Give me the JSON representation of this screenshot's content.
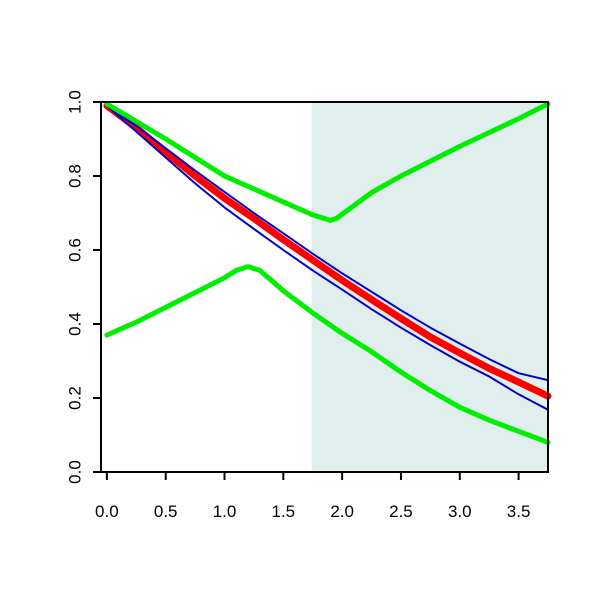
{
  "chart_data": {
    "type": "line",
    "title": "",
    "xlabel": "",
    "ylabel": "",
    "xlim": [
      -0.05,
      3.75
    ],
    "ylim": [
      0.0,
      1.0
    ],
    "x_ticks": [
      0.0,
      0.5,
      1.0,
      1.5,
      2.0,
      2.5,
      3.0,
      3.5
    ],
    "x_tick_labels": [
      "0.0",
      "0.5",
      "1.0",
      "1.5",
      "2.0",
      "2.5",
      "3.0",
      "3.5"
    ],
    "y_ticks": [
      0.0,
      0.2,
      0.4,
      0.6,
      0.8,
      1.0
    ],
    "y_tick_labels": [
      "0.0",
      "0.2",
      "0.4",
      "0.6",
      "0.8",
      "1.0"
    ],
    "grid": false,
    "legend": "none",
    "shaded_region": {
      "x_from": 1.74,
      "x_to": 3.75,
      "color": "#e0eeee"
    },
    "series": [
      {
        "color": "#ff0000",
        "width": 7,
        "x": [
          0.0,
          0.25,
          0.5,
          0.75,
          1.0,
          1.25,
          1.5,
          1.75,
          2.0,
          2.25,
          2.5,
          2.75,
          3.0,
          3.25,
          3.5,
          3.75
        ],
        "y": [
          0.99,
          0.93,
          0.865,
          0.8,
          0.74,
          0.685,
          0.628,
          0.573,
          0.518,
          0.466,
          0.415,
          0.365,
          0.322,
          0.28,
          0.243,
          0.205
        ]
      },
      {
        "color": "#0000cc",
        "width": 2,
        "x": [
          0.0,
          0.25,
          0.5,
          0.75,
          1.0,
          1.25,
          1.5,
          1.75,
          2.0,
          2.25,
          2.5,
          2.75,
          3.0,
          3.25,
          3.5,
          3.75
        ],
        "y": [
          0.99,
          0.935,
          0.875,
          0.815,
          0.757,
          0.7,
          0.645,
          0.59,
          0.537,
          0.487,
          0.437,
          0.39,
          0.347,
          0.305,
          0.267,
          0.248
        ]
      },
      {
        "color": "#0000cc",
        "width": 2,
        "x": [
          0.0,
          0.25,
          0.5,
          0.75,
          1.0,
          1.25,
          1.5,
          1.75,
          2.0,
          2.25,
          2.5,
          2.75,
          3.0,
          3.25,
          3.5,
          3.75
        ],
        "y": [
          0.99,
          0.92,
          0.85,
          0.78,
          0.715,
          0.657,
          0.6,
          0.545,
          0.493,
          0.44,
          0.39,
          0.343,
          0.298,
          0.258,
          0.21,
          0.168
        ]
      },
      {
        "color": "#00ee00",
        "width": 5,
        "x": [
          0.0,
          0.5,
          1.0,
          1.5,
          1.75,
          1.85,
          1.9,
          1.95,
          2.25,
          2.5,
          3.0,
          3.5,
          3.75
        ],
        "y": [
          0.995,
          0.9,
          0.8,
          0.73,
          0.695,
          0.685,
          0.68,
          0.685,
          0.755,
          0.8,
          0.88,
          0.955,
          0.995
        ]
      },
      {
        "color": "#00ee00",
        "width": 5,
        "x": [
          0.0,
          0.25,
          0.5,
          0.75,
          1.0,
          1.1,
          1.2,
          1.3,
          1.5,
          1.75,
          2.0,
          2.25,
          2.5,
          2.75,
          3.0,
          3.25,
          3.5,
          3.75
        ],
        "y": [
          0.37,
          0.405,
          0.445,
          0.485,
          0.525,
          0.545,
          0.555,
          0.545,
          0.49,
          0.43,
          0.375,
          0.325,
          0.27,
          0.22,
          0.175,
          0.14,
          0.11,
          0.08
        ]
      }
    ]
  }
}
